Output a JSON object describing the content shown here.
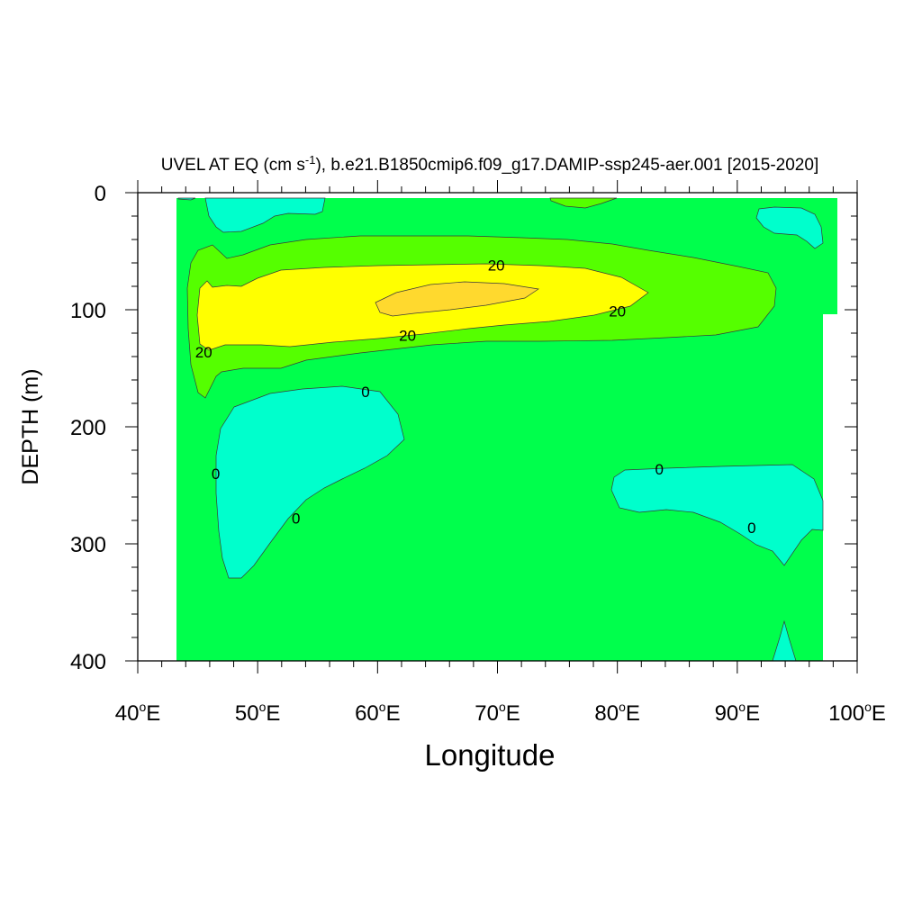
{
  "chart_data": {
    "type": "heatmap",
    "title_prefix": "UVEL AT EQ (cm s",
    "title_superscript": "-1",
    "title_suffix": "), b.e21.B1850cmip6.f09_g17.DAMIP-ssp245-aer.001 [2015-2020]",
    "xlabel": "Longitude",
    "ylabel": "DEPTH (m)",
    "xlim": [
      40,
      100
    ],
    "ylim": [
      0,
      400
    ],
    "y_inverted": true,
    "x_ticks": [
      {
        "value": 40,
        "num": "40",
        "suffix": "E"
      },
      {
        "value": 50,
        "num": "50",
        "suffix": "E"
      },
      {
        "value": 60,
        "num": "60",
        "suffix": "E"
      },
      {
        "value": 70,
        "num": "70",
        "suffix": "E"
      },
      {
        "value": 80,
        "num": "80",
        "suffix": "E"
      },
      {
        "value": 90,
        "num": "90",
        "suffix": "E"
      },
      {
        "value": 100,
        "num": "100",
        "suffix": "E"
      }
    ],
    "y_ticks": [
      {
        "value": 0,
        "label": "0"
      },
      {
        "value": 100,
        "label": "100"
      },
      {
        "value": 200,
        "label": "200"
      },
      {
        "value": 300,
        "label": "300"
      },
      {
        "value": 400,
        "label": "400"
      }
    ],
    "colors": {
      "negative": "#00ffcc",
      "near_zero": "#00ff4c",
      "low_positive": "#55ff00",
      "mid_positive": "#ffff00",
      "high_positive": "#ffd92e"
    },
    "contour_labels": [
      {
        "text": "20",
        "lon": 69.9,
        "depth": 62
      },
      {
        "text": "20",
        "lon": 80.0,
        "depth": 101
      },
      {
        "text": "20",
        "lon": 62.5,
        "depth": 122
      },
      {
        "text": "20",
        "lon": 45.5,
        "depth": 136
      },
      {
        "text": "0",
        "lon": 59.0,
        "depth": 170
      },
      {
        "text": "0",
        "lon": 46.5,
        "depth": 240
      },
      {
        "text": "0",
        "lon": 53.2,
        "depth": 278
      },
      {
        "text": "0",
        "lon": 83.5,
        "depth": 236
      },
      {
        "text": "0",
        "lon": 91.2,
        "depth": 286
      }
    ]
  }
}
